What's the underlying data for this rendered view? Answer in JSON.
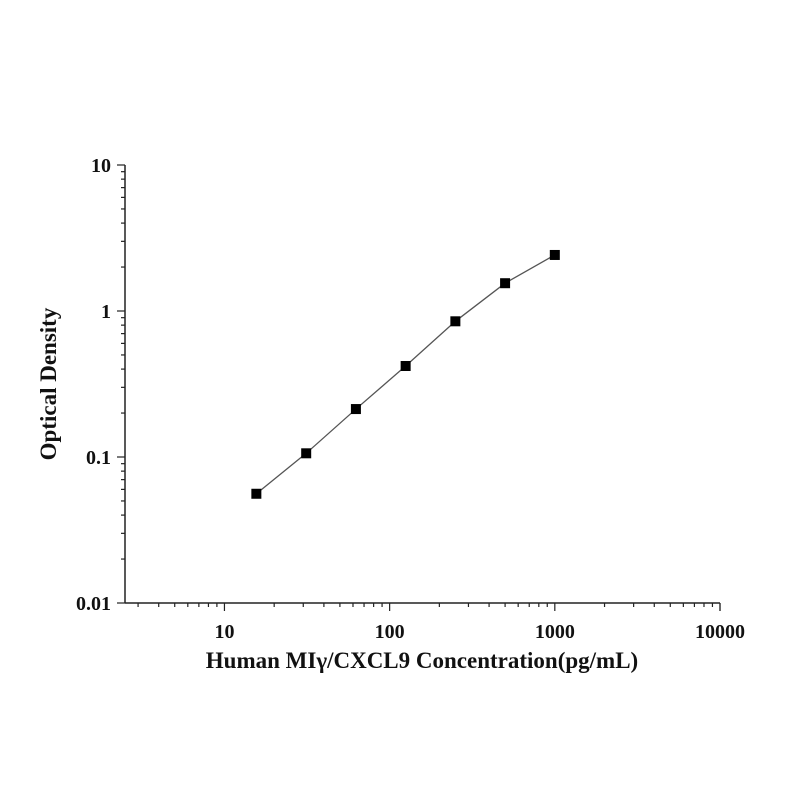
{
  "chart_data": {
    "type": "line",
    "title": "",
    "xlabel": "Human MIγ/CXCL9 Concentration(pg/mL)",
    "ylabel": "Optical Density",
    "xscale": "log",
    "yscale": "log",
    "xlim": [
      2.5,
      10000
    ],
    "ylim": [
      0.01,
      10
    ],
    "xticks": [
      10,
      100,
      1000,
      10000
    ],
    "xtick_labels": [
      "10",
      "100",
      "1000",
      "10000"
    ],
    "yticks": [
      0.01,
      0.1,
      1,
      10
    ],
    "ytick_labels": [
      "0.01",
      "0.1",
      "1",
      "10"
    ],
    "grid": false,
    "marker": "square",
    "colors": {
      "line": "#555555",
      "marker": "#000000",
      "axis": "#222222"
    },
    "series": [
      {
        "x": [
          15.6,
          31.25,
          62.5,
          125,
          250,
          500,
          1000
        ],
        "y": [
          0.056,
          0.106,
          0.213,
          0.42,
          0.85,
          1.55,
          2.42
        ]
      }
    ]
  }
}
